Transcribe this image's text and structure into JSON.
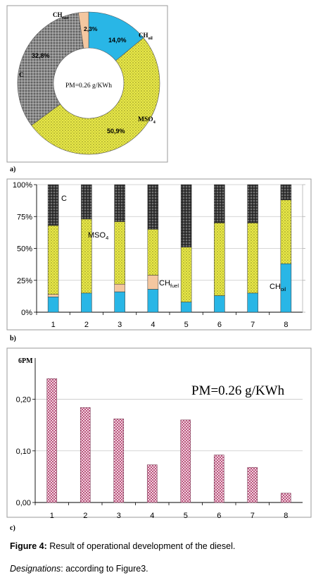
{
  "panel_labels": {
    "a": "a)",
    "b": "b)",
    "c": "c)"
  },
  "caption": {
    "label": "Figure 4:",
    "text": "Result of operational development of the diesel."
  },
  "designations": {
    "label": "Designations",
    "text": ": according to Figure3."
  },
  "colors": {
    "C": "#8c8c8c",
    "MSO4": "#e8e84a",
    "CHfuel": "#f4c7a0",
    "CHoil": "#29b6e6",
    "bar_c": "#e9b7c9"
  },
  "chart_data": [
    {
      "type": "pie",
      "variant": "donut",
      "center_text": "PM=0.26 g/KWh",
      "slices": [
        {
          "key": "CHoil",
          "label_main": "CH",
          "label_sub": "oil",
          "value": 14.0,
          "value_label": "14,0%"
        },
        {
          "key": "MSO4",
          "label_main": "MSO",
          "label_sub": "4",
          "value": 50.9,
          "value_label": "50,9%"
        },
        {
          "key": "C",
          "label_main": "C",
          "label_sub": "",
          "value": 32.8,
          "value_label": "32,8%"
        },
        {
          "key": "CHfuel",
          "label_main": "CH",
          "label_sub": "fuel",
          "value": 2.3,
          "value_label": "2,3%"
        }
      ]
    },
    {
      "type": "bar",
      "stacked": true,
      "normalized": true,
      "categories": [
        "1",
        "2",
        "3",
        "4",
        "5",
        "6",
        "7",
        "8"
      ],
      "yticks": [
        "0%",
        "25%",
        "50%",
        "75%",
        "100%"
      ],
      "ylim": [
        0,
        100
      ],
      "grid": true,
      "series": [
        {
          "key": "CHoil",
          "name_main": "CH",
          "name_sub": "oil",
          "values": [
            12,
            15,
            16,
            18,
            8,
            13,
            15,
            38
          ]
        },
        {
          "key": "CHfuel",
          "name_main": "CH",
          "name_sub": "fuel",
          "values": [
            2,
            0,
            6,
            11,
            0,
            0,
            0,
            0
          ]
        },
        {
          "key": "MSO4",
          "name_main": "MSO",
          "name_sub": "4",
          "values": [
            54,
            58,
            49,
            36,
            43,
            57,
            55,
            50
          ]
        },
        {
          "key": "C",
          "name_main": "C",
          "name_sub": "",
          "values": [
            32,
            27,
            29,
            35,
            49,
            30,
            30,
            12
          ]
        }
      ]
    },
    {
      "type": "bar",
      "categories": [
        "1",
        "2",
        "3",
        "4",
        "5",
        "6",
        "7",
        "8"
      ],
      "values": [
        0.24,
        0.184,
        0.162,
        0.073,
        0.16,
        0.092,
        0.068,
        0.018
      ],
      "ylabel": "6PM",
      "yticks": [
        "0,00",
        "0,10",
        "0,20"
      ],
      "ylim": [
        0,
        0.28
      ],
      "annotation": "PM=0.26 g/KWh",
      "grid": true
    }
  ]
}
